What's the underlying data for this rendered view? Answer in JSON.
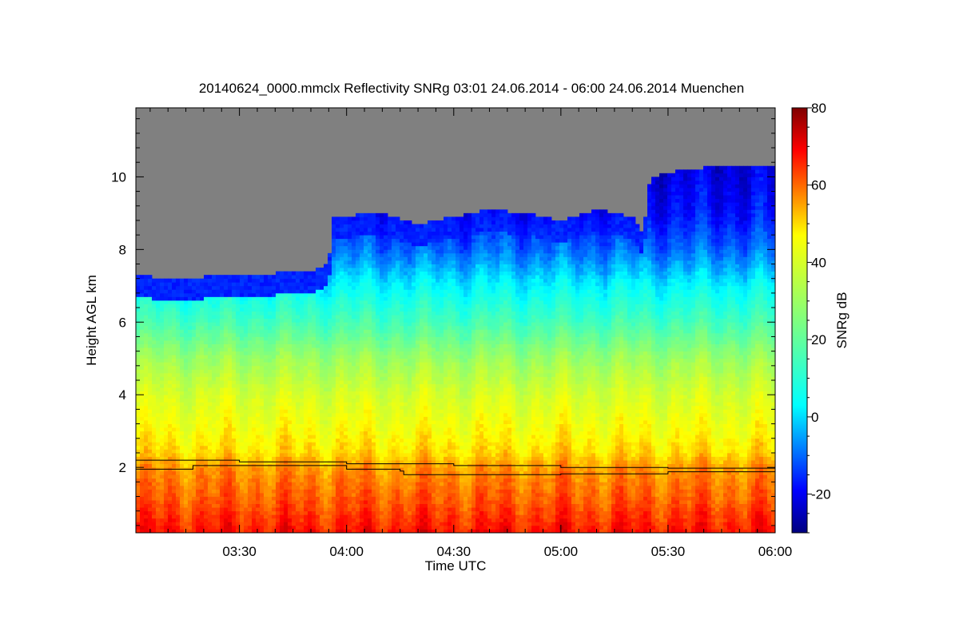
{
  "chart_data": {
    "type": "heatmap",
    "title": "20140624_0000.mmclx Reflectivity SNRg   03:01 24.06.2014 - 06:00 24.06.2014 Muenchen",
    "xlabel": "Time UTC",
    "ylabel": "Height AGL km",
    "x_ticks": [
      "03:30",
      "04:00",
      "04:30",
      "05:00",
      "05:30",
      "06:00"
    ],
    "x_tick_minutes": [
      210,
      240,
      270,
      300,
      330,
      360
    ],
    "xlim_minutes": [
      181,
      360
    ],
    "y_ticks": [
      2,
      4,
      6,
      8,
      10
    ],
    "ylim": [
      0.2,
      11.9
    ],
    "colorbar": {
      "label": "SNRg dB",
      "range": [
        -30,
        80
      ],
      "ticks": [
        -20,
        0,
        20,
        40,
        60,
        80
      ],
      "stops": [
        {
          "v": -30,
          "color": "#00007f"
        },
        {
          "v": -19,
          "color": "#0000ff"
        },
        {
          "v": 3,
          "color": "#00ffff"
        },
        {
          "v": 25,
          "color": "#7fff7f"
        },
        {
          "v": 47,
          "color": "#ffff00"
        },
        {
          "v": 69,
          "color": "#ff0000"
        },
        {
          "v": 80,
          "color": "#7f0000"
        }
      ]
    },
    "no_signal_color": "#808080",
    "echo_top_km": [
      {
        "t": 181,
        "h": 7.3
      },
      {
        "t": 190,
        "h": 7.2
      },
      {
        "t": 200,
        "h": 7.25
      },
      {
        "t": 210,
        "h": 7.3
      },
      {
        "t": 220,
        "h": 7.35
      },
      {
        "t": 230,
        "h": 7.4
      },
      {
        "t": 235,
        "h": 7.6
      },
      {
        "t": 236,
        "h": 8.9
      },
      {
        "t": 250,
        "h": 9.0
      },
      {
        "t": 260,
        "h": 8.7
      },
      {
        "t": 270,
        "h": 8.9
      },
      {
        "t": 280,
        "h": 9.1
      },
      {
        "t": 290,
        "h": 9.0
      },
      {
        "t": 300,
        "h": 8.8
      },
      {
        "t": 310,
        "h": 9.1
      },
      {
        "t": 320,
        "h": 8.9
      },
      {
        "t": 323,
        "h": 8.4
      },
      {
        "t": 325,
        "h": 10.0
      },
      {
        "t": 335,
        "h": 10.2
      },
      {
        "t": 345,
        "h": 10.3
      },
      {
        "t": 360,
        "h": 10.3
      }
    ],
    "snr_profile_db": [
      {
        "h": 0.2,
        "v": 68
      },
      {
        "h": 1.0,
        "v": 62
      },
      {
        "h": 2.0,
        "v": 56
      },
      {
        "h": 2.4,
        "v": 50
      },
      {
        "h": 3.0,
        "v": 46
      },
      {
        "h": 4.0,
        "v": 40
      },
      {
        "h": 5.0,
        "v": 30
      },
      {
        "h": 6.0,
        "v": 15
      },
      {
        "h": 7.0,
        "v": 3
      },
      {
        "h": 8.0,
        "v": -10
      },
      {
        "h": 9.0,
        "v": -18
      },
      {
        "h": 10.3,
        "v": -22
      }
    ],
    "boundary_lines_km": [
      [
        {
          "t": 181,
          "h": 2.2
        },
        {
          "t": 200,
          "h": 2.2
        },
        {
          "t": 210,
          "h": 2.15
        },
        {
          "t": 240,
          "h": 2.1
        },
        {
          "t": 270,
          "h": 2.05
        },
        {
          "t": 300,
          "h": 2.0
        },
        {
          "t": 330,
          "h": 1.98
        },
        {
          "t": 360,
          "h": 1.95
        }
      ],
      [
        {
          "t": 181,
          "h": 1.95
        },
        {
          "t": 195,
          "h": 1.95
        },
        {
          "t": 197,
          "h": 2.05
        },
        {
          "t": 240,
          "h": 1.95
        },
        {
          "t": 255,
          "h": 1.9
        },
        {
          "t": 256,
          "h": 1.8
        },
        {
          "t": 300,
          "h": 1.82
        },
        {
          "t": 330,
          "h": 1.88
        },
        {
          "t": 360,
          "h": 1.88
        }
      ]
    ]
  }
}
